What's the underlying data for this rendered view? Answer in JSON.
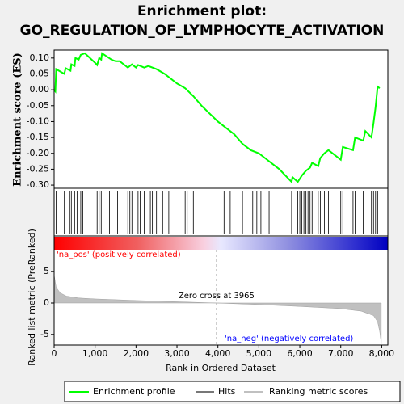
{
  "chart_data": [
    {
      "type": "line",
      "title": "Enrichment plot:",
      "subtitle": "GO_REGULATION_OF_LYMPHOCYTE_ACTIVATION",
      "y_label": "Enrichment score (ES)",
      "xlim": [
        0,
        8150
      ],
      "ylim": [
        -0.31,
        0.125
      ],
      "yticks": [
        {
          "value": 0.1,
          "label": "0.10"
        },
        0.05,
        {
          "value": 0,
          "label": "0.00"
        },
        -0.05,
        {
          "value": -0.1,
          "label": "-0.10"
        },
        -0.15,
        {
          "value": -0.2,
          "label": "-0.20"
        },
        -0.25,
        {
          "value": -0.3,
          "label": "-0.30"
        }
      ],
      "series": [
        {
          "name": "Enrichment profile",
          "color": "#00ff00",
          "x": [
            0,
            30,
            50,
            250,
            280,
            400,
            420,
            500,
            520,
            600,
            650,
            750,
            1000,
            1050,
            1100,
            1150,
            1170,
            1400,
            1500,
            1600,
            1800,
            1900,
            2000,
            2050,
            2200,
            2300,
            2500,
            2700,
            3000,
            3200,
            3400,
            3600,
            4000,
            4400,
            4600,
            4800,
            5000,
            5200,
            5500,
            5800,
            5820,
            5950,
            6050,
            6150,
            6250,
            6300,
            6450,
            6500,
            6600,
            6700,
            7000,
            7050,
            7300,
            7350,
            7550,
            7600,
            7750,
            7800,
            7850,
            7900,
            7950
          ],
          "values": [
            0,
            -0.005,
            0.065,
            0.05,
            0.068,
            0.06,
            0.08,
            0.075,
            0.1,
            0.095,
            0.11,
            0.115,
            0.085,
            0.078,
            0.1,
            0.095,
            0.115,
            0.095,
            0.09,
            0.09,
            0.07,
            0.08,
            0.07,
            0.078,
            0.07,
            0.075,
            0.065,
            0.05,
            0.02,
            0.005,
            -0.02,
            -0.05,
            -0.1,
            -0.14,
            -0.17,
            -0.19,
            -0.2,
            -0.22,
            -0.25,
            -0.29,
            -0.275,
            -0.29,
            -0.27,
            -0.255,
            -0.245,
            -0.23,
            -0.24,
            -0.215,
            -0.2,
            -0.19,
            -0.22,
            -0.18,
            -0.19,
            -0.15,
            -0.16,
            -0.13,
            -0.15,
            -0.105,
            -0.055,
            0.01,
            0.005
          ]
        }
      ],
      "hits": {
        "name": "Hits",
        "color": "#000000",
        "x": [
          50,
          250,
          380,
          420,
          500,
          560,
          650,
          700,
          1050,
          1100,
          1150,
          1350,
          1550,
          1800,
          1850,
          1900,
          2050,
          2100,
          2200,
          2350,
          2400,
          2500,
          2650,
          2800,
          2950,
          3050,
          3200,
          3250,
          3400,
          4150,
          4300,
          4600,
          4850,
          4950,
          5050,
          5250,
          5800,
          5950,
          6000,
          6050,
          6100,
          6150,
          6200,
          6250,
          6300,
          6450,
          6500,
          6600,
          6700,
          7000,
          7050,
          7300,
          7350,
          7550,
          7750,
          7800,
          7850,
          7900
        ]
      }
    },
    {
      "type": "area",
      "y_label": "Ranked list metric (PreRanked)",
      "x_label": "Rank in Ordered Dataset",
      "xlim": [
        0,
        8150
      ],
      "ylim": [
        -6.7,
        8.5
      ],
      "xticks": [
        0,
        {
          "value": 1000,
          "label": "1,000"
        },
        {
          "value": 2000,
          "label": "2,000"
        },
        {
          "value": 3000,
          "label": "3,000"
        },
        {
          "value": 4000,
          "label": "4,000"
        },
        {
          "value": 5000,
          "label": "5,000"
        },
        {
          "value": 6000,
          "label": "6,000"
        },
        {
          "value": 7000,
          "label": "7,000"
        },
        {
          "value": 8000,
          "label": "8,000"
        }
      ],
      "yticks": [
        5,
        0,
        -5
      ],
      "zero_cross": {
        "value": 3965,
        "label": "Zero cross at 3965"
      },
      "pos_label": "'na_pos' (positively correlated)",
      "neg_label": "'na_neg' (negatively correlated)",
      "series": [
        {
          "name": "Ranking metric scores",
          "color": "#c0c0c0",
          "x": [
            0,
            50,
            150,
            300,
            600,
            1000,
            2000,
            3000,
            3965,
            5000,
            6000,
            7000,
            7500,
            7800,
            7900,
            7950,
            7990
          ],
          "values": [
            4.5,
            2.5,
            1.6,
            1.1,
            0.8,
            0.65,
            0.4,
            0.2,
            0,
            -0.25,
            -0.55,
            -0.9,
            -1.3,
            -2,
            -3,
            -4.5,
            -6.5
          ]
        }
      ]
    }
  ]
}
